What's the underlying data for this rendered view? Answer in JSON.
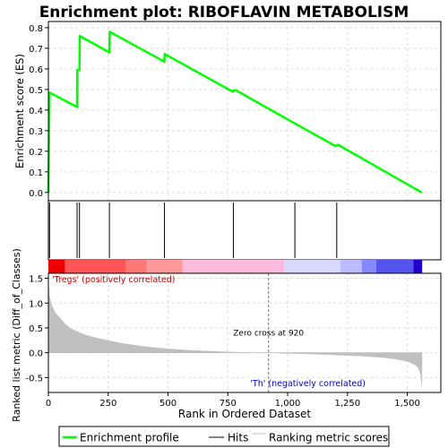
{
  "chart_data": {
    "type": "line",
    "title": "Enrichment plot: RIBOFLAVIN METABOLISM",
    "es_panel": {
      "ylabel": "Enrichment score (ES)",
      "ylim": [
        -0.04,
        0.83
      ],
      "yticks": [
        0.0,
        0.1,
        0.2,
        0.3,
        0.4,
        0.5,
        0.6,
        0.7,
        0.8
      ],
      "ytick_labels": [
        "0.0",
        "0.1",
        "0.2",
        "0.3",
        "0.4",
        "0.5",
        "0.6",
        "0.7",
        "0.8"
      ],
      "grid": true,
      "series": [
        {
          "name": "Enrichment profile",
          "color": "#00ff00",
          "x": [
            0,
            5,
            120,
            121,
            130,
            131,
            255,
            256,
            485,
            486,
            770,
            780,
            790,
            1030,
            1200,
            1210,
            1560
          ],
          "y": [
            0.0,
            0.485,
            0.415,
            0.595,
            0.595,
            0.76,
            0.68,
            0.78,
            0.635,
            0.672,
            0.49,
            0.498,
            0.492,
            0.335,
            0.225,
            0.232,
            0.0
          ]
        }
      ]
    },
    "hits": {
      "name": "Hits",
      "color": "#000000",
      "positions": [
        5,
        120,
        130,
        255,
        485,
        773,
        1030,
        1205
      ]
    },
    "color_bar": {
      "segments": [
        {
          "color": "#ee0000",
          "from": 0,
          "to": 70
        },
        {
          "color": "#ff5555",
          "from": 70,
          "to": 325
        },
        {
          "color": "#ff7777",
          "from": 325,
          "to": 410
        },
        {
          "color": "#ff9999",
          "from": 410,
          "to": 560
        },
        {
          "color": "#ffbbdd",
          "from": 560,
          "to": 985
        },
        {
          "color": "#d8d8ff",
          "from": 985,
          "to": 1220
        },
        {
          "color": "#bbbbff",
          "from": 1220,
          "to": 1310
        },
        {
          "color": "#8888ff",
          "from": 1310,
          "to": 1370
        },
        {
          "color": "#5555ee",
          "from": 1370,
          "to": 1525
        },
        {
          "color": "#2200cc",
          "from": 1525,
          "to": 1562
        }
      ]
    },
    "ranked_panel": {
      "ylabel": "Ranked list metric (Diff_of_Classes)",
      "xlabel": "Rank in Ordered Dataset",
      "ylim": [
        -0.8,
        1.6
      ],
      "yticks": [
        -0.5,
        0.0,
        0.5,
        1.0,
        1.5
      ],
      "ytick_labels": [
        "-0.5",
        "0.0",
        "0.5",
        "1.0",
        "1.5"
      ],
      "xlim": [
        0,
        1640
      ],
      "xticks": [
        0,
        250,
        500,
        750,
        1000,
        1250,
        1500
      ],
      "xtick_labels": [
        "0",
        "250",
        "500",
        "750",
        "1,000",
        "1,250",
        "1,500"
      ],
      "grid": true,
      "fill_color": "#c0c0c0",
      "metric": {
        "x": [
          0,
          5,
          15,
          30,
          50,
          70,
          90,
          120,
          150,
          200,
          250,
          300,
          400,
          500,
          600,
          700,
          800,
          920,
          1000,
          1100,
          1200,
          1300,
          1400,
          1450,
          1500,
          1530,
          1545,
          1555,
          1562
        ],
        "y": [
          1.55,
          1.15,
          0.95,
          0.8,
          0.7,
          0.58,
          0.5,
          0.43,
          0.37,
          0.3,
          0.25,
          0.2,
          0.13,
          0.08,
          0.05,
          0.03,
          0.01,
          0.0,
          -0.02,
          -0.03,
          -0.05,
          -0.07,
          -0.1,
          -0.13,
          -0.18,
          -0.24,
          -0.3,
          -0.45,
          -0.72
        ]
      },
      "zero_cross": {
        "x": 920,
        "label": "Zero cross at 920"
      },
      "annotations": [
        {
          "text": "'Tregs' (positively correlated)",
          "color": "#cc0000"
        },
        {
          "text": "'Th' (negatively correlated)",
          "color": "#0000cc"
        }
      ]
    },
    "legend": {
      "placement": "bottom",
      "entries": [
        {
          "label": "Enrichment profile",
          "color": "#00ff00"
        },
        {
          "label": "Hits",
          "color": "#000000"
        },
        {
          "label": "Ranking metric scores",
          "color": "#c0c0c0"
        }
      ]
    }
  }
}
